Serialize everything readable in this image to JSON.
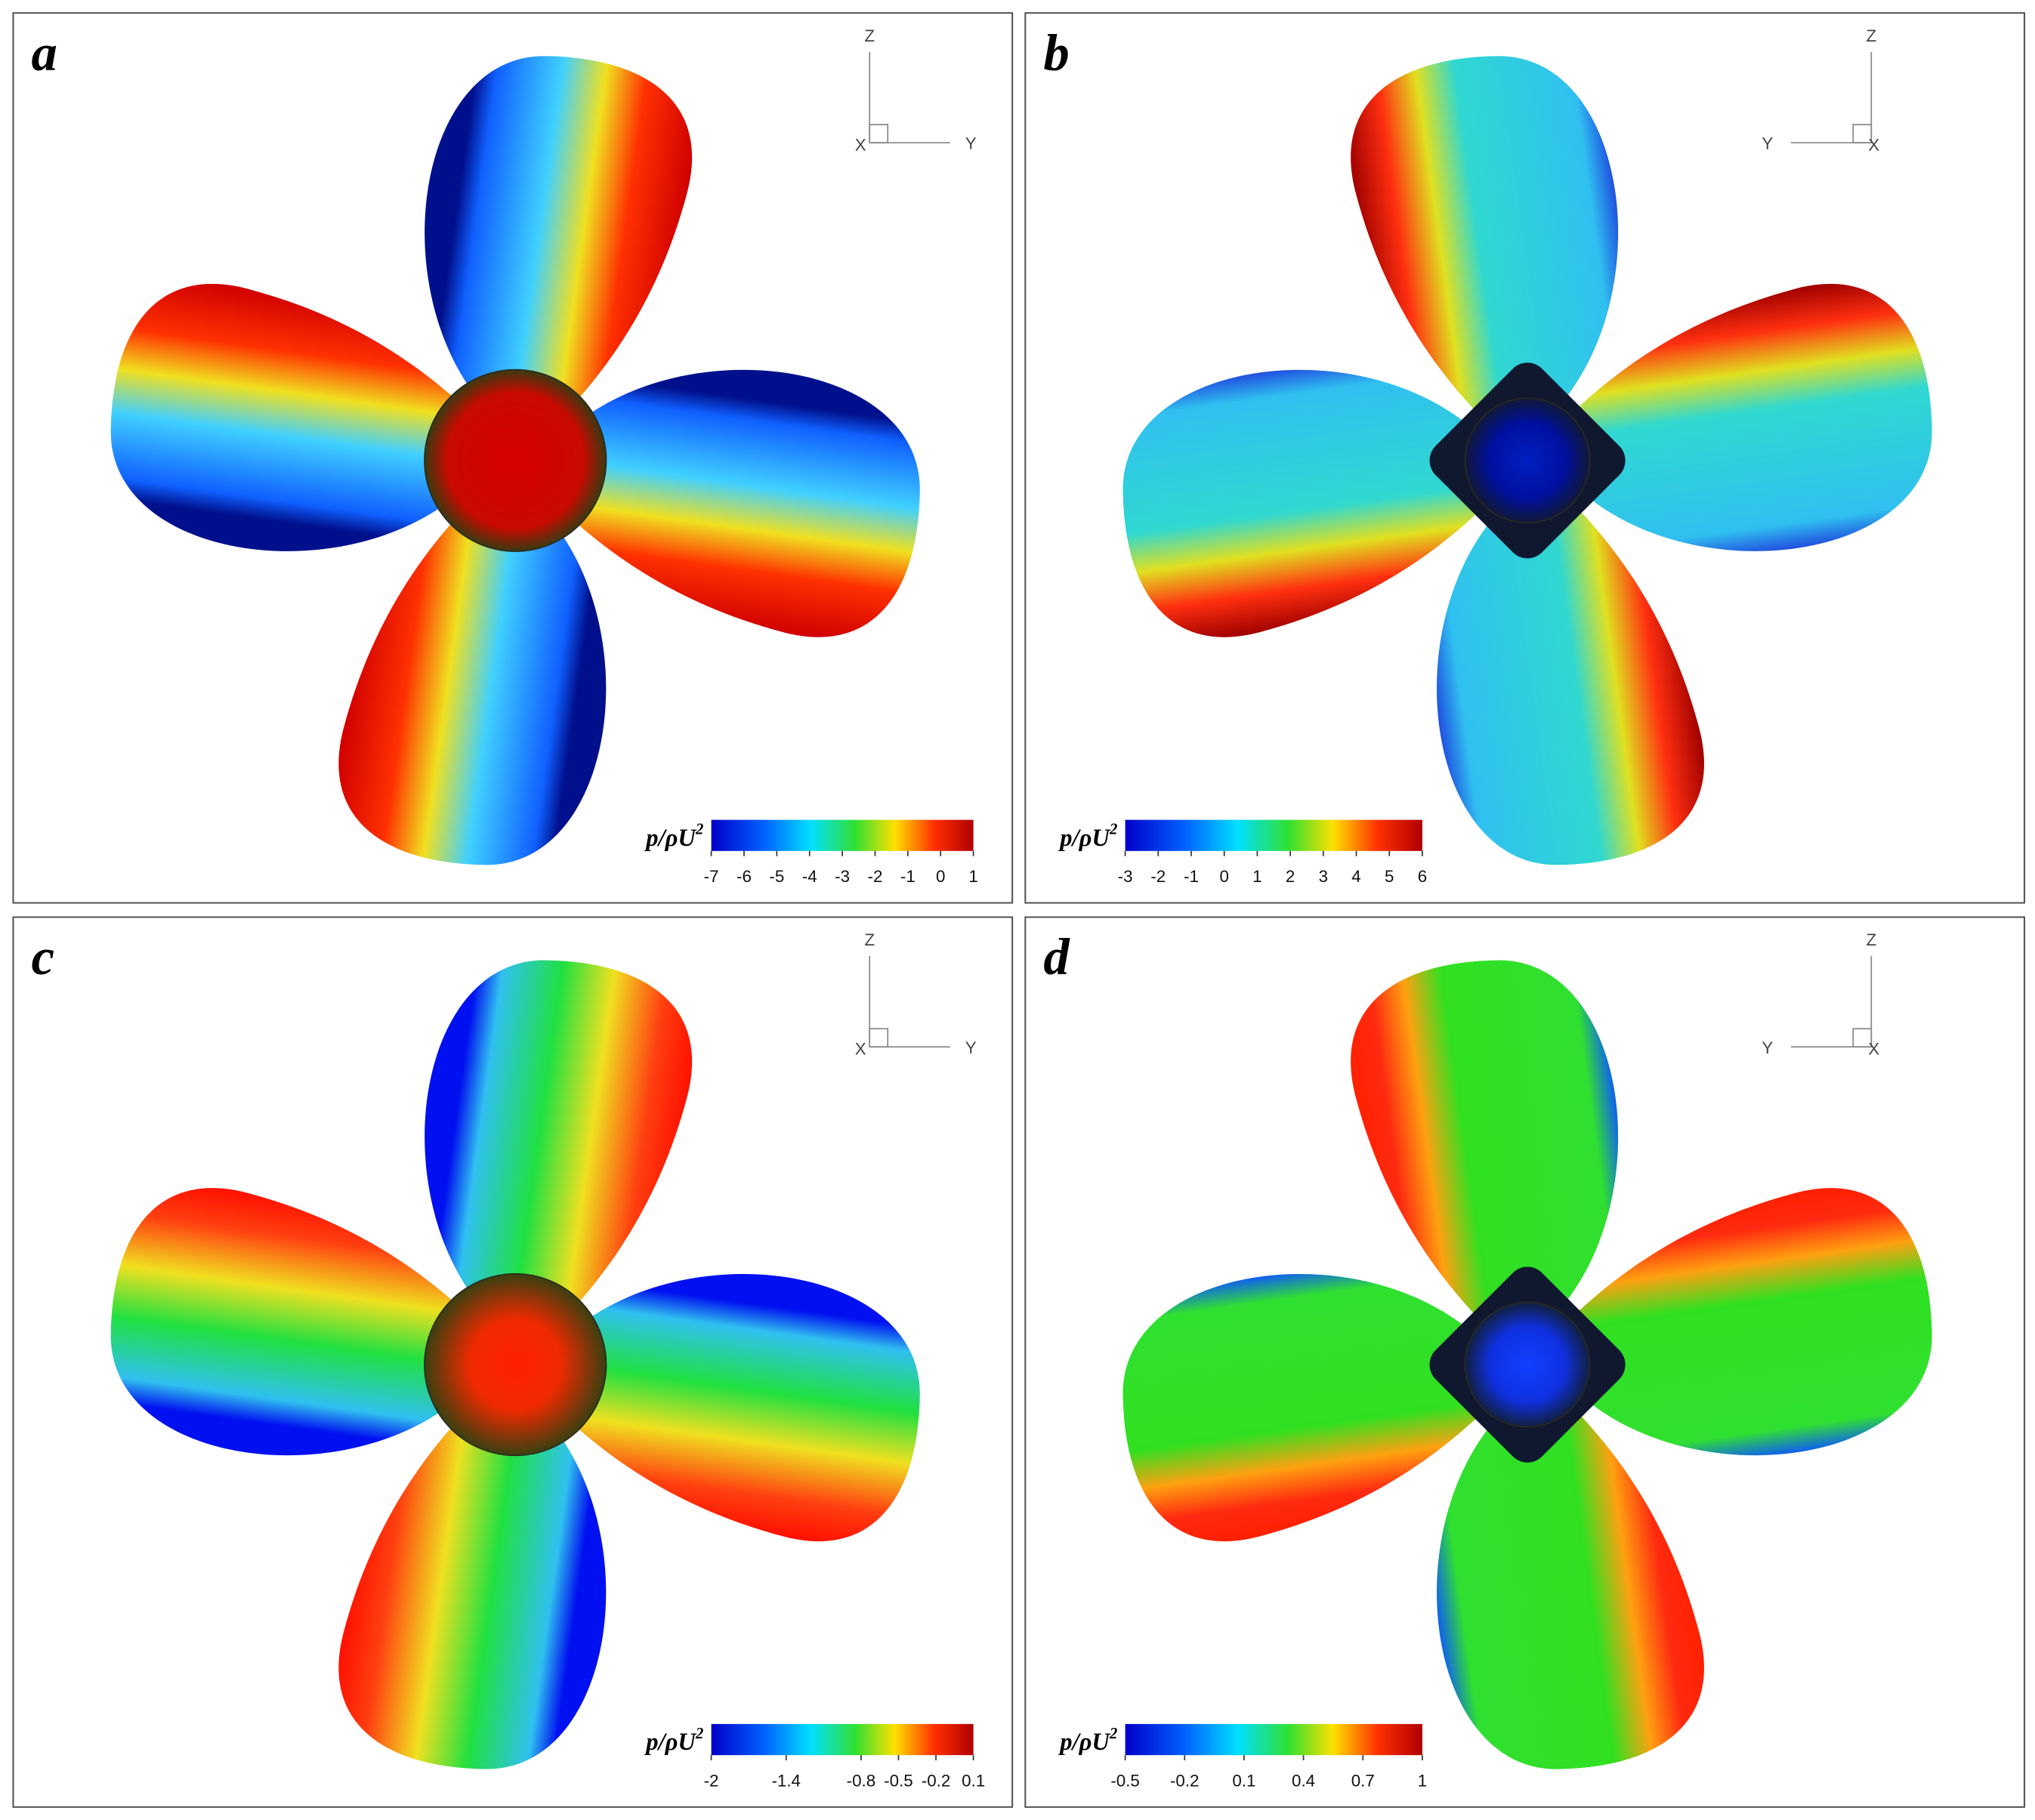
{
  "panels": [
    {
      "label": "a",
      "axes": {
        "up": "Z",
        "side": "Y",
        "normal": "X"
      },
      "colorbar": {
        "label": "p/ρU",
        "superscript": "2",
        "range": [
          -7,
          1
        ],
        "ticks": [
          -7,
          -6,
          -5,
          -4,
          -3,
          -2,
          -1,
          0,
          1
        ]
      }
    },
    {
      "label": "b",
      "axes": {
        "up": "Z",
        "side": "Y",
        "normal": "X"
      },
      "colorbar": {
        "label": "p/ρU",
        "superscript": "2",
        "range": [
          -3,
          6
        ],
        "ticks": [
          -3,
          -2,
          -1,
          0,
          1,
          2,
          3,
          4,
          5,
          6
        ]
      }
    },
    {
      "label": "c",
      "axes": {
        "up": "Z",
        "side": "Y",
        "normal": "X"
      },
      "colorbar": {
        "label": "p/ρU",
        "superscript": "2",
        "range": [
          -2,
          0.1
        ],
        "ticks": [
          -2,
          -1.4,
          -0.8,
          -0.5,
          -0.2,
          0.1
        ]
      }
    },
    {
      "label": "d",
      "axes": {
        "up": "Z",
        "side": "Y",
        "normal": "X"
      },
      "colorbar": {
        "label": "p/ρU",
        "superscript": "2",
        "range": [
          -0.5,
          1
        ],
        "ticks": [
          -0.5,
          -0.2,
          0.1,
          0.4,
          0.7,
          1
        ]
      }
    }
  ]
}
